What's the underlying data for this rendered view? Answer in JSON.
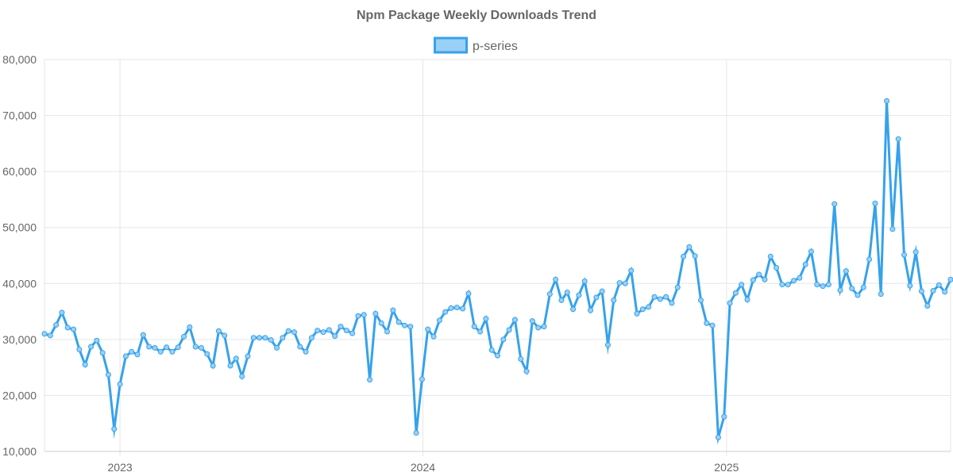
{
  "chart_data": {
    "type": "line",
    "title": "Npm Package Weekly Downloads Trend",
    "xlabel": "",
    "ylabel": "",
    "ylim": [
      10000,
      80000
    ],
    "y_ticks": [
      "10,000",
      "20,000",
      "30,000",
      "40,000",
      "50,000",
      "60,000",
      "70,000",
      "80,000"
    ],
    "x_tick_labels": [
      "2023",
      "2024",
      "2025"
    ],
    "x_range": [
      "2022-10-02",
      "2025-09-28"
    ],
    "grid": true,
    "legend_position": "top-center",
    "line_color": "#36a2eb",
    "fill_color": "#9ad0f5",
    "series": [
      {
        "name": "p-series",
        "x": [
          "2022-10-02",
          "2022-10-09",
          "2022-10-16",
          "2022-10-23",
          "2022-10-30",
          "2022-11-06",
          "2022-11-13",
          "2022-11-20",
          "2022-11-27",
          "2022-12-04",
          "2022-12-11",
          "2022-12-18",
          "2022-12-25",
          "2023-01-01",
          "2023-01-08",
          "2023-01-15",
          "2023-01-22",
          "2023-01-29",
          "2023-02-05",
          "2023-02-12",
          "2023-02-19",
          "2023-02-26",
          "2023-03-05",
          "2023-03-12",
          "2023-03-19",
          "2023-03-26",
          "2023-04-02",
          "2023-04-09",
          "2023-04-16",
          "2023-04-23",
          "2023-04-30",
          "2023-05-07",
          "2023-05-14",
          "2023-05-21",
          "2023-05-28",
          "2023-06-04",
          "2023-06-11",
          "2023-06-18",
          "2023-06-25",
          "2023-07-02",
          "2023-07-09",
          "2023-07-16",
          "2023-07-23",
          "2023-07-30",
          "2023-08-06",
          "2023-08-13",
          "2023-08-20",
          "2023-08-27",
          "2023-09-03",
          "2023-09-10",
          "2023-09-17",
          "2023-09-24",
          "2023-10-01",
          "2023-10-08",
          "2023-10-15",
          "2023-10-22",
          "2023-10-29",
          "2023-11-05",
          "2023-11-12",
          "2023-11-19",
          "2023-11-26",
          "2023-12-03",
          "2023-12-10",
          "2023-12-17",
          "2023-12-24",
          "2023-12-31",
          "2024-01-07",
          "2024-01-14",
          "2024-01-21",
          "2024-01-28",
          "2024-02-04",
          "2024-02-11",
          "2024-02-18",
          "2024-02-25",
          "2024-03-03",
          "2024-03-10",
          "2024-03-17",
          "2024-03-24",
          "2024-03-31",
          "2024-04-07",
          "2024-04-14",
          "2024-04-21",
          "2024-04-28",
          "2024-05-05",
          "2024-05-12",
          "2024-05-19",
          "2024-05-26",
          "2024-06-02",
          "2024-06-09",
          "2024-06-16",
          "2024-06-23",
          "2024-06-30",
          "2024-07-07",
          "2024-07-14",
          "2024-07-21",
          "2024-07-28",
          "2024-08-04",
          "2024-08-11",
          "2024-08-18",
          "2024-08-25",
          "2024-09-01",
          "2024-09-08",
          "2024-09-15",
          "2024-09-22",
          "2024-09-29",
          "2024-10-06",
          "2024-10-13",
          "2024-10-20",
          "2024-10-27",
          "2024-11-03",
          "2024-11-10",
          "2024-11-17",
          "2024-11-24",
          "2024-12-01",
          "2024-12-08",
          "2024-12-15",
          "2024-12-22",
          "2024-12-29",
          "2025-01-05",
          "2025-01-12",
          "2025-01-19",
          "2025-01-26",
          "2025-02-02",
          "2025-02-09",
          "2025-02-16",
          "2025-02-23",
          "2025-03-02",
          "2025-03-09",
          "2025-03-16",
          "2025-03-23",
          "2025-03-30",
          "2025-04-06",
          "2025-04-13",
          "2025-04-20",
          "2025-04-27",
          "2025-05-04",
          "2025-05-11",
          "2025-05-18",
          "2025-05-25",
          "2025-06-01",
          "2025-06-08",
          "2025-06-15",
          "2025-06-22",
          "2025-06-29",
          "2025-07-06",
          "2025-07-13",
          "2025-07-20",
          "2025-07-27",
          "2025-08-03",
          "2025-08-10",
          "2025-08-17",
          "2025-08-24",
          "2025-08-31",
          "2025-09-07",
          "2025-09-14",
          "2025-09-21",
          "2025-09-28"
        ],
        "values": [
          31000,
          30700,
          32600,
          34800,
          32100,
          31800,
          28200,
          25500,
          28700,
          29800,
          27600,
          23700,
          14000,
          22000,
          27000,
          27800,
          27300,
          30800,
          28700,
          28500,
          27800,
          28600,
          27800,
          28600,
          30500,
          32200,
          28700,
          28500,
          27400,
          25300,
          31500,
          30700,
          25300,
          26600,
          23400,
          27000,
          30300,
          30300,
          30300,
          29900,
          28500,
          30300,
          31500,
          31300,
          28700,
          27800,
          30300,
          31600,
          31300,
          31700,
          30600,
          32300,
          31600,
          31100,
          34200,
          34400,
          22800,
          34600,
          32900,
          31400,
          35200,
          33100,
          32500,
          32300,
          13300,
          22900,
          31800,
          30500,
          33400,
          34900,
          35600,
          35700,
          35500,
          38200,
          32300,
          31400,
          33700,
          28100,
          27100,
          30000,
          31700,
          33500,
          26500,
          24300,
          33300,
          32100,
          32300,
          38100,
          40700,
          37000,
          38400,
          35400,
          37900,
          40400,
          35200,
          37500,
          38600,
          29000,
          37000,
          40100,
          40000,
          42300,
          34600,
          35400,
          35800,
          37600,
          37200,
          37600,
          36500,
          39300,
          44800,
          46500,
          44900,
          37000,
          32900,
          32500,
          12500,
          16200,
          36500,
          38300,
          39800,
          37100,
          40600,
          41600,
          40700,
          44800,
          42800,
          39800,
          39800,
          40500,
          41000,
          43400,
          45700,
          39800,
          39500,
          39800,
          54200,
          38800,
          42200,
          39100,
          37900,
          39300,
          44300,
          54300,
          38100,
          72600,
          49700,
          65800,
          45100,
          39600,
          45600,
          38600,
          36000,
          38700,
          39700,
          38500,
          40700
        ]
      }
    ]
  }
}
